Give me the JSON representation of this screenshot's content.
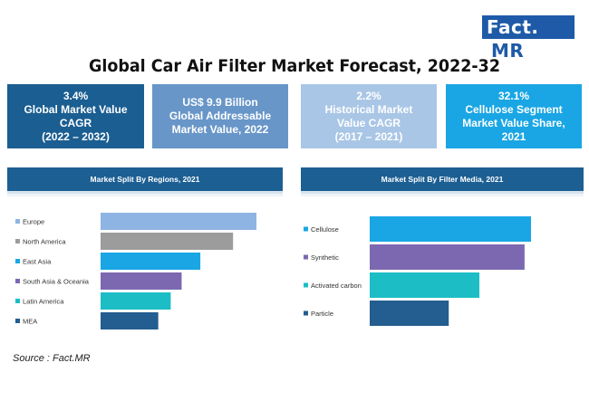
{
  "brand": {
    "name": "Fact",
    "name_box": "MR",
    "separator": "."
  },
  "title": "Global Car Air Filter Market Forecast, 2022-32",
  "stats": [
    {
      "lines": [
        "3.4%",
        "Global Market Value",
        "CAGR",
        "(2022 – 2032)"
      ]
    },
    {
      "lines": [
        "US$ 9.9 Billion",
        "Global Addressable",
        "Market Value, 2022"
      ]
    },
    {
      "lines": [
        "2.2%",
        "Historical Market",
        "Value CAGR",
        "(2017 – 2021)"
      ]
    },
    {
      "lines": [
        "32.1%",
        "Cellulose Segment",
        "Market Value Share,",
        "2021"
      ]
    }
  ],
  "source": "Source : Fact.MR",
  "chart_data": [
    {
      "type": "bar",
      "orientation": "horizontal",
      "title": "Market Split By Regions, 2021",
      "categories": [
        "Europe",
        "North America",
        "East Asia",
        "South Asia & Oceania",
        "Latin America",
        "MEA"
      ],
      "values": [
        100,
        85,
        64,
        52,
        45,
        37
      ],
      "colors": [
        "#8eb4e3",
        "#9c9c9c",
        "#1aa6e4",
        "#7b68b0",
        "#1dbdc6",
        "#245d8f"
      ],
      "xlim": [
        0,
        100
      ],
      "grid": false,
      "legend": "left"
    },
    {
      "type": "bar",
      "orientation": "horizontal",
      "title": "Market Split By Filter Media, 2021",
      "categories": [
        "Cellulose",
        "Synthetic",
        "Activated carbon",
        "Particle"
      ],
      "values": [
        100,
        96,
        68,
        49
      ],
      "colors": [
        "#1aa6e4",
        "#7b68b0",
        "#1dbdc6",
        "#245d8f"
      ],
      "xlim": [
        0,
        100
      ],
      "grid": false,
      "legend": "left"
    }
  ]
}
